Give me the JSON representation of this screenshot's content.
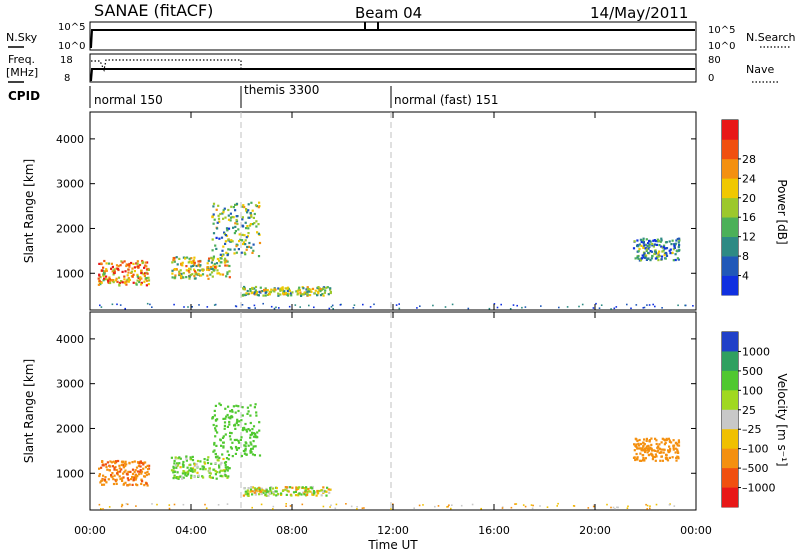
{
  "header": {
    "title": "SANAE (fitACF)",
    "beam": "Beam 04",
    "date": "14/May/2011"
  },
  "noise_panel": {
    "left_label": "N.Sky",
    "right_label": "N.Search",
    "left_ticks": [
      "10^5",
      "10^0"
    ],
    "right_ticks": [
      "10^5",
      "10^0"
    ]
  },
  "freq_panel": {
    "left_label_1": "Freq.",
    "left_label_2": "[MHz]",
    "right_label": "Nave",
    "left_ticks": [
      "18",
      "8"
    ],
    "right_ticks": [
      "80",
      "0"
    ]
  },
  "cpid": {
    "label": "CPID",
    "modes": [
      "normal 150",
      "themis 3300",
      "normal (fast) 151"
    ]
  },
  "x_axis": {
    "label": "Time UT",
    "ticks": [
      "00:00",
      "04:00",
      "08:00",
      "12:00",
      "16:00",
      "20:00",
      "00:00"
    ]
  },
  "chart_data": [
    {
      "type": "heatmap",
      "panel": "power",
      "ylabel": "Slant Range [km]",
      "ylim": [
        180,
        4600
      ],
      "xlim_hours": [
        0,
        24
      ],
      "yticks": [
        1000,
        2000,
        3000,
        4000
      ],
      "colorbar": {
        "label": "Power [dB]",
        "ticks": [
          "4",
          "8",
          "12",
          "16",
          "20",
          "24",
          "28"
        ],
        "colors": [
          "#1030e0",
          "#2058b8",
          "#2e8a84",
          "#4cb058",
          "#9cc82c",
          "#f0c800",
          "#f49010",
          "#f05010",
          "#e81818"
        ]
      },
      "regions": [
        {
          "t": [
            0.3,
            2.3
          ],
          "r": [
            750,
            1300
          ],
          "level": 0.7
        },
        {
          "t": [
            3.2,
            5.5
          ],
          "r": [
            900,
            1400
          ],
          "level": 0.55
        },
        {
          "t": [
            4.8,
            6.7
          ],
          "r": [
            1400,
            2600
          ],
          "level": 0.4
        },
        {
          "t": [
            6.0,
            9.5
          ],
          "r": [
            520,
            720
          ],
          "level": 0.45
        },
        {
          "t": [
            21.5,
            23.3
          ],
          "r": [
            1300,
            1800
          ],
          "level": 0.3
        }
      ]
    },
    {
      "type": "heatmap",
      "panel": "velocity",
      "ylabel": "Slant Range [km]",
      "ylim": [
        180,
        4600
      ],
      "xlim_hours": [
        0,
        24
      ],
      "yticks": [
        1000,
        2000,
        3000,
        4000
      ],
      "colorbar": {
        "label": "Velocity [m s⁻¹]",
        "ticks": [
          "1000",
          "500",
          "100",
          "25",
          "–25",
          "–100",
          "–500",
          "–1000"
        ],
        "colors": [
          "#2040c8",
          "#30a060",
          "#50c830",
          "#a0d820",
          "#c8c8c8",
          "#f0c000",
          "#f49010",
          "#f05010",
          "#e81818"
        ]
      },
      "regions": [
        {
          "t": [
            0.3,
            2.3
          ],
          "r": [
            750,
            1300
          ],
          "vel": -400
        },
        {
          "t": [
            3.2,
            5.5
          ],
          "r": [
            900,
            1400
          ],
          "vel": 150
        },
        {
          "t": [
            4.8,
            6.7
          ],
          "r": [
            1400,
            2600
          ],
          "vel": 300
        },
        {
          "t": [
            6.0,
            9.5
          ],
          "r": [
            520,
            720
          ],
          "vel": 0
        },
        {
          "t": [
            21.5,
            23.3
          ],
          "r": [
            1300,
            1800
          ],
          "vel": -300
        }
      ]
    }
  ]
}
